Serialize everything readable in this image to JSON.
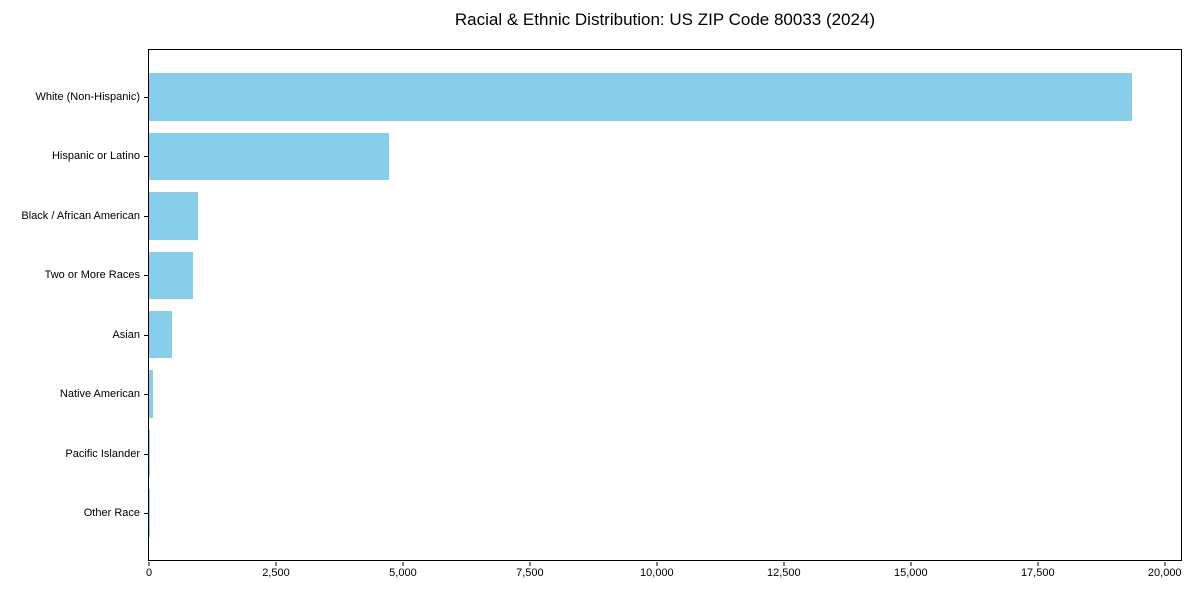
{
  "colors": {
    "bar": "#87CEEB",
    "axis": "#000000",
    "background": "#ffffff",
    "text": "#000000"
  },
  "chart_data": {
    "type": "bar",
    "orientation": "horizontal",
    "title": "Racial & Ethnic Distribution: US ZIP Code 80033 (2024)",
    "categories": [
      "White (Non-Hispanic)",
      "Hispanic or Latino",
      "Black / African American",
      "Two or More Races",
      "Asian",
      "Native American",
      "Pacific Islander",
      "Other Race"
    ],
    "values": [
      19360,
      4730,
      955,
      865,
      450,
      80,
      15,
      5
    ],
    "xlabel": "",
    "ylabel": "",
    "xlim": [
      0,
      20320
    ],
    "x_ticks": [
      0,
      2500,
      5000,
      7500,
      10000,
      12500,
      15000,
      17500,
      20000
    ],
    "x_tick_labels": [
      "0",
      "2,500",
      "5,000",
      "7,500",
      "10,000",
      "12,500",
      "15,000",
      "17,500",
      "20,000"
    ],
    "grid": false,
    "legend": null,
    "bar_color": "#87CEEB"
  }
}
